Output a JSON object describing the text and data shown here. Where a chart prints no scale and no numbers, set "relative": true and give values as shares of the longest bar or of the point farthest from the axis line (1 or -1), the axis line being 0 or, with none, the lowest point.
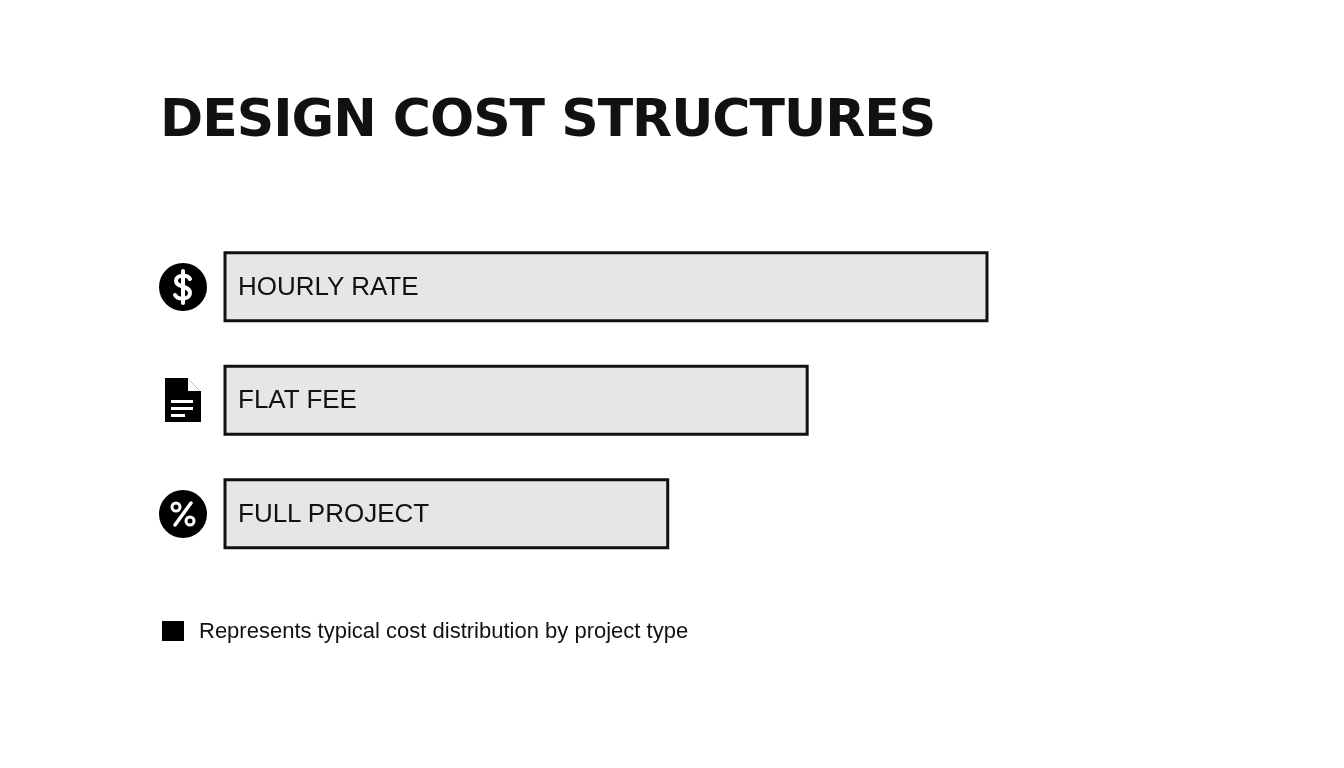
{
  "chart_data": {
    "type": "bar",
    "orientation": "horizontal",
    "relative": true,
    "title": "DESIGN COST STRUCTURES",
    "categories": [
      "HOURLY RATE",
      "FLAT FEE",
      "FULL PROJECT"
    ],
    "values": [
      1,
      0.764,
      0.581
    ],
    "color": "#e6e6e6",
    "annotations": [
      "Represents typical cost distribution by project type"
    ]
  }
}
